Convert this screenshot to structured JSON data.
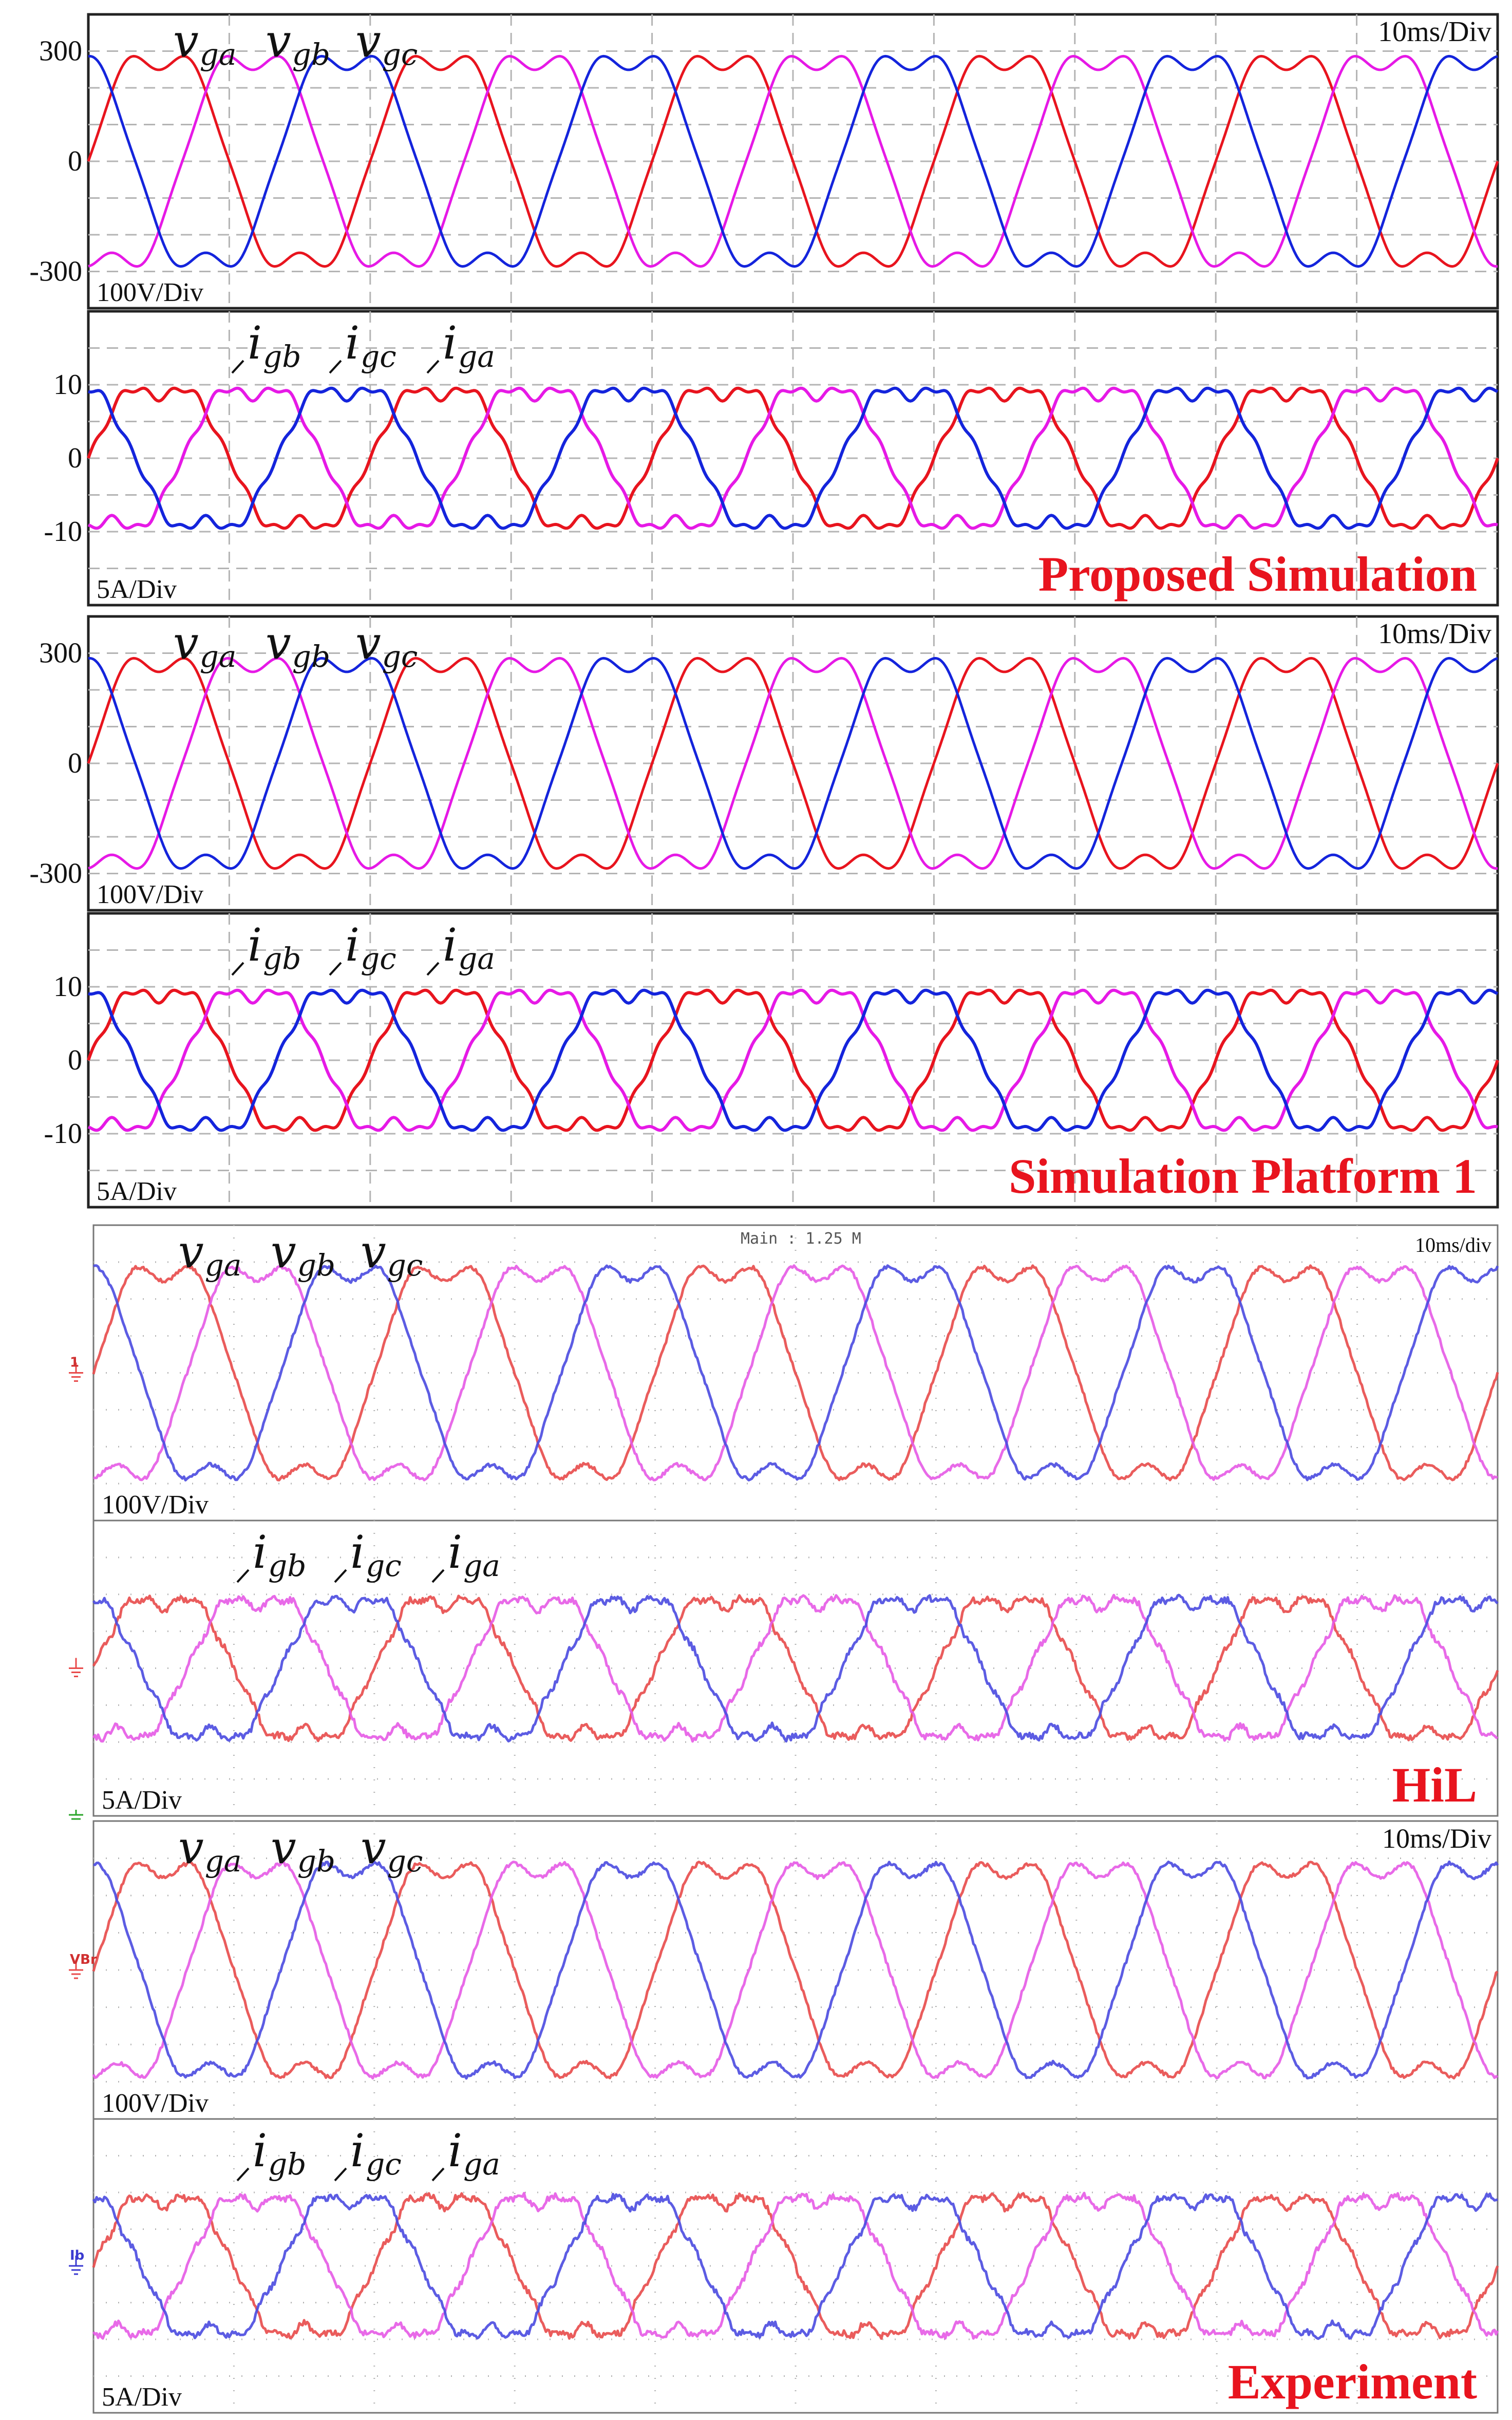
{
  "chart_data": [
    {
      "type": "line",
      "group": "simulation-proposed",
      "quantity": "grid-voltage",
      "series": [
        {
          "name": "v_ga",
          "color": "#e8141e",
          "amplitude": 330,
          "phase_deg": 0
        },
        {
          "name": "v_gb",
          "color": "#e619e6",
          "amplitude": 330,
          "phase_deg": -120
        },
        {
          "name": "v_gc",
          "color": "#1424dc",
          "amplitude": 330,
          "phase_deg": 120
        }
      ],
      "frequency_hz": 50,
      "time_ms": [
        0,
        100
      ],
      "ylim": [
        -400,
        400
      ],
      "ytick_labels": [
        "300",
        "0",
        "-300"
      ],
      "yticks": [
        300,
        0,
        -300
      ],
      "scale_label": "100V/Div",
      "time_label": "10ms/Div",
      "legend": {
        "p1": "v",
        "s1": "ga",
        "p2": "v",
        "s2": "gb",
        "p3": "v",
        "s3": "gc"
      }
    },
    {
      "type": "line",
      "group": "simulation-proposed",
      "quantity": "grid-current",
      "series": [
        {
          "name": "i_ga",
          "color": "#e8141e",
          "amplitude": 11,
          "phase_deg": 0
        },
        {
          "name": "i_gb",
          "color": "#e619e6",
          "amplitude": 11,
          "phase_deg": -120
        },
        {
          "name": "i_gc",
          "color": "#1424dc",
          "amplitude": 11,
          "phase_deg": 120
        }
      ],
      "frequency_hz": 50,
      "time_ms": [
        0,
        100
      ],
      "ylim": [
        -20,
        20
      ],
      "ytick_labels": [
        "10",
        "0",
        "-10"
      ],
      "yticks": [
        10,
        0,
        -10
      ],
      "scale_label": "5A/Div",
      "panel_label": "Proposed Simulation",
      "legend": {
        "p1": "i",
        "s1": "gb",
        "p2": "i",
        "s2": "gc",
        "p3": "i",
        "s3": "ga"
      }
    },
    {
      "type": "line",
      "group": "simulation-platform-1",
      "quantity": "grid-voltage",
      "series": [
        {
          "name": "v_ga",
          "color": "#e8141e",
          "amplitude": 330,
          "phase_deg": 0
        },
        {
          "name": "v_gb",
          "color": "#e619e6",
          "amplitude": 330,
          "phase_deg": -120
        },
        {
          "name": "v_gc",
          "color": "#1424dc",
          "amplitude": 330,
          "phase_deg": 120
        }
      ],
      "frequency_hz": 50,
      "time_ms": [
        0,
        100
      ],
      "ylim": [
        -400,
        400
      ],
      "ytick_labels": [
        "300",
        "0",
        "-300"
      ],
      "yticks": [
        300,
        0,
        -300
      ],
      "scale_label": "100V/Div",
      "time_label": "10ms/Div",
      "legend": {
        "p1": "v",
        "s1": "ga",
        "p2": "v",
        "s2": "gb",
        "p3": "v",
        "s3": "gc"
      }
    },
    {
      "type": "line",
      "group": "simulation-platform-1",
      "quantity": "grid-current",
      "series": [
        {
          "name": "i_ga",
          "color": "#e8141e",
          "amplitude": 11,
          "phase_deg": 0
        },
        {
          "name": "i_gb",
          "color": "#e619e6",
          "amplitude": 11,
          "phase_deg": -120
        },
        {
          "name": "i_gc",
          "color": "#1424dc",
          "amplitude": 11,
          "phase_deg": 120
        }
      ],
      "frequency_hz": 50,
      "time_ms": [
        0,
        100
      ],
      "ylim": [
        -20,
        20
      ],
      "ytick_labels": [
        "10",
        "0",
        "-10"
      ],
      "yticks": [
        10,
        0,
        -10
      ],
      "scale_label": "5A/Div",
      "panel_label": "Simulation Platform 1",
      "legend": {
        "p1": "i",
        "s1": "gb",
        "p2": "i",
        "s2": "gc",
        "p3": "i",
        "s3": "ga"
      }
    },
    {
      "type": "line",
      "group": "hil",
      "quantity": "grid-voltage",
      "series": [
        {
          "name": "v_ga",
          "color": "#e84a4a",
          "amplitude": 330,
          "phase_deg": 0
        },
        {
          "name": "v_gb",
          "color": "#e65ae6",
          "amplitude": 330,
          "phase_deg": -120
        },
        {
          "name": "v_gc",
          "color": "#4a4ae0",
          "amplitude": 330,
          "phase_deg": 120
        }
      ],
      "frequency_hz": 50,
      "time_ms": [
        0,
        100
      ],
      "ylim": [
        -400,
        400
      ],
      "scale_label": "100V/Div",
      "time_label": "10ms/div",
      "header_label": "Main : 1.25 M",
      "channel_marker": "1",
      "legend": {
        "p1": "v",
        "s1": "ga",
        "p2": "v",
        "s2": "gb",
        "p3": "v",
        "s3": "gc"
      }
    },
    {
      "type": "line",
      "group": "hil",
      "quantity": "grid-current",
      "series": [
        {
          "name": "i_ga",
          "color": "#e84a4a",
          "amplitude": 11,
          "phase_deg": 0
        },
        {
          "name": "i_gb",
          "color": "#e65ae6",
          "amplitude": 11,
          "phase_deg": -120
        },
        {
          "name": "i_gc",
          "color": "#4a4ae0",
          "amplitude": 11,
          "phase_deg": 120
        }
      ],
      "frequency_hz": 50,
      "time_ms": [
        0,
        100
      ],
      "ylim": [
        -20,
        20
      ],
      "scale_label": "5A/Div",
      "panel_label": "HiL",
      "legend": {
        "p1": "i",
        "s1": "gb",
        "p2": "i",
        "s2": "gc",
        "p3": "i",
        "s3": "ga"
      }
    },
    {
      "type": "line",
      "group": "experiment",
      "quantity": "grid-voltage",
      "series": [
        {
          "name": "v_ga",
          "color": "#e84a4a",
          "amplitude": 330,
          "phase_deg": 0
        },
        {
          "name": "v_gb",
          "color": "#e65ae6",
          "amplitude": 330,
          "phase_deg": -120
        },
        {
          "name": "v_gc",
          "color": "#4a4ae0",
          "amplitude": 330,
          "phase_deg": 120
        }
      ],
      "frequency_hz": 50,
      "time_ms": [
        0,
        100
      ],
      "ylim": [
        -400,
        400
      ],
      "scale_label": "100V/Div",
      "time_label": "10ms/Div",
      "channel_marker": "VBr",
      "legend": {
        "p1": "v",
        "s1": "ga",
        "p2": "v",
        "s2": "gb",
        "p3": "v",
        "s3": "gc"
      }
    },
    {
      "type": "line",
      "group": "experiment",
      "quantity": "grid-current",
      "series": [
        {
          "name": "i_ga",
          "color": "#e84a4a",
          "amplitude": 11,
          "phase_deg": 0
        },
        {
          "name": "i_gb",
          "color": "#e65ae6",
          "amplitude": 11,
          "phase_deg": -120
        },
        {
          "name": "i_gc",
          "color": "#4a4ae0",
          "amplitude": 11,
          "phase_deg": 120
        }
      ],
      "frequency_hz": 50,
      "time_ms": [
        0,
        100
      ],
      "ylim": [
        -20,
        20
      ],
      "scale_label": "5A/Div",
      "panel_label": "Experiment",
      "channel_marker": "Ib",
      "legend": {
        "p1": "i",
        "s1": "gb",
        "p2": "i",
        "s2": "gc",
        "p3": "i",
        "s3": "ga"
      }
    }
  ],
  "colors": {
    "label_red": "#e8141e",
    "frame": "#222222",
    "grid": "#b4b4b4"
  }
}
